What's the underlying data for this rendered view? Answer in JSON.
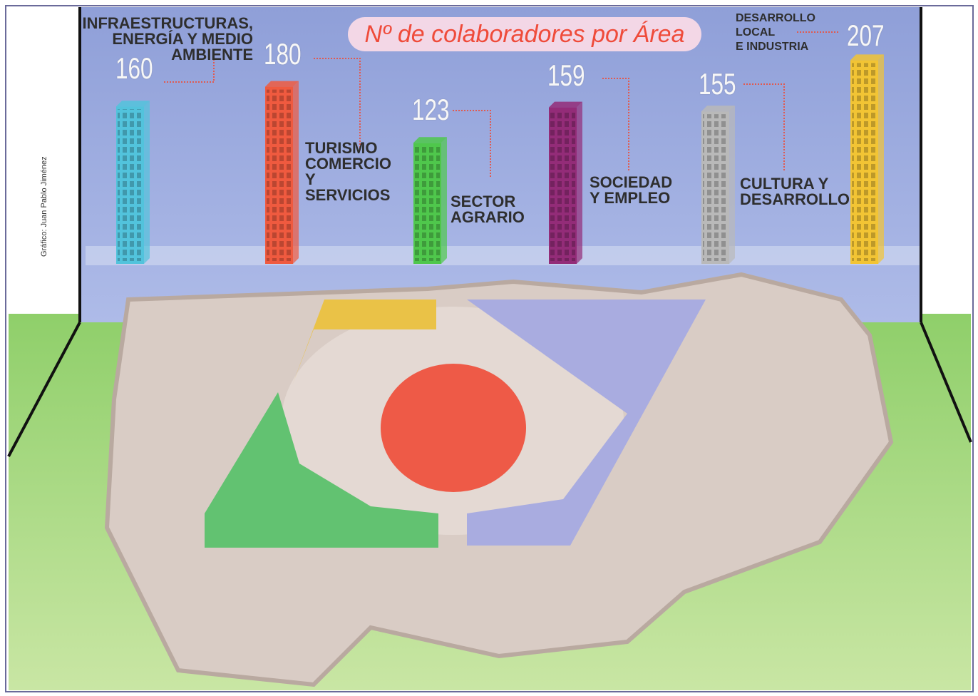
{
  "chart_data": {
    "type": "bar",
    "title": "Nº de colaboradores por Área",
    "credit": "Gráfico: Juan Pablo Jiménez",
    "categories": [
      "INFRAESTRUCTURAS,\nENERGÍA Y MEDIO\nAMBIENTE",
      "TURISMO\nCOMERCIO\nY\nSERVICIOS",
      "SECTOR\nAGRARIO",
      "SOCIEDAD\nY EMPLEO",
      "CULTURA Y\nDESARROLLO",
      "DESARROLLO\nLOCAL\nE INDUSTRIA"
    ],
    "values": [
      160,
      180,
      123,
      159,
      155,
      207
    ],
    "colors": [
      "#52c3dc",
      "#ef5a3f",
      "#4fc74c",
      "#932c78",
      "#b9b9b9",
      "#f2c434"
    ]
  }
}
